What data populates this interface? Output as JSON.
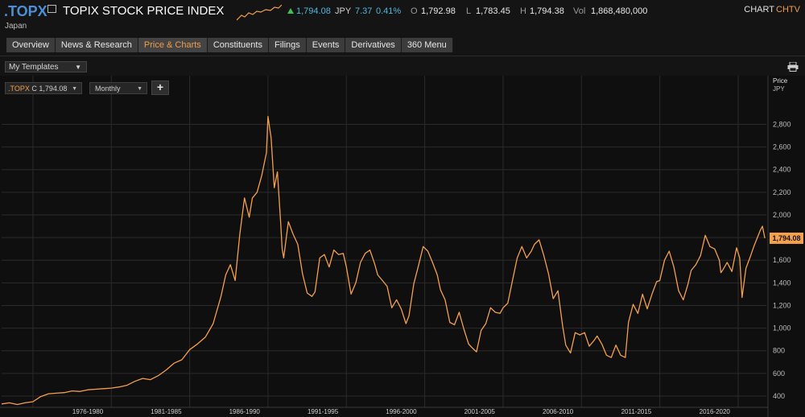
{
  "header": {
    "ric": ".TOPX",
    "name": "TOPIX STOCK PRICE INDEX",
    "country": "Japan",
    "last": "1,794.08",
    "currency": "JPY",
    "change": "7.37",
    "change_pct": "0.41%",
    "open_label": "O",
    "open": "1,792.98",
    "low_label": "L",
    "low": "1,783.45",
    "high_label": "H",
    "high": "1,794.38",
    "vol_label": "Vol",
    "vol": "1,868,480,000",
    "chart_label": "CHART",
    "chart_code": "CHTV",
    "colors": {
      "ric": "#4a90d9",
      "up": "#3ec05a",
      "change": "#4fb8e0",
      "accent": "#f39c4a"
    }
  },
  "tabs": [
    {
      "label": "Overview"
    },
    {
      "label": "News & Research"
    },
    {
      "label": "Price & Charts",
      "active": true
    },
    {
      "label": "Constituents"
    },
    {
      "label": "Filings"
    },
    {
      "label": "Events"
    },
    {
      "label": "Derivatives"
    },
    {
      "label": "360 Menu"
    }
  ],
  "toolbar": {
    "templates": "My Templates",
    "ric_prefix": ".TOPX",
    "ric_close": "C 1,794.08",
    "frequency": "Monthly",
    "add_label": "+",
    "print_icon": "printer-icon"
  },
  "chart_data": {
    "type": "line",
    "frequency": "Monthly",
    "y_title": "Price",
    "y_unit": "JPY",
    "ylim": [
      300,
      2960
    ],
    "y_ticks": [
      400,
      600,
      800,
      1000,
      1200,
      1400,
      1600,
      1800,
      2000,
      2200,
      2400,
      2600,
      2800
    ],
    "y_tick_labels": [
      "400",
      "600",
      "800",
      "1,000",
      "1,200",
      "1,400",
      "1,600",
      "1,800",
      "2,000",
      "2,200",
      "2,400",
      "2,600",
      "2,800"
    ],
    "x_period_labels": [
      "1976-1980",
      "1981-1985",
      "1986-1990",
      "1991-1995",
      "1996-2000",
      "2001-2005",
      "2006-2010",
      "2011-2015",
      "2016-2020"
    ],
    "xlim": [
      1973.0,
      2021.8
    ],
    "grid": true,
    "last_value": 1794.08,
    "last_value_label": "1,794.08",
    "line_color": "#f5a04a",
    "series": [
      {
        "points": [
          [
            1973.0,
            330
          ],
          [
            1973.5,
            340
          ],
          [
            1974.0,
            325
          ],
          [
            1974.5,
            340
          ],
          [
            1975.0,
            350
          ],
          [
            1975.5,
            395
          ],
          [
            1976.0,
            420
          ],
          [
            1976.5,
            425
          ],
          [
            1977.0,
            430
          ],
          [
            1977.5,
            445
          ],
          [
            1978.0,
            440
          ],
          [
            1978.5,
            455
          ],
          [
            1979.0,
            460
          ],
          [
            1979.5,
            465
          ],
          [
            1980.0,
            470
          ],
          [
            1980.5,
            480
          ],
          [
            1981.0,
            495
          ],
          [
            1981.5,
            530
          ],
          [
            1982.0,
            555
          ],
          [
            1982.5,
            545
          ],
          [
            1983.0,
            580
          ],
          [
            1983.5,
            630
          ],
          [
            1984.0,
            690
          ],
          [
            1984.5,
            720
          ],
          [
            1985.0,
            810
          ],
          [
            1985.5,
            860
          ],
          [
            1986.0,
            920
          ],
          [
            1986.5,
            1040
          ],
          [
            1987.0,
            1280
          ],
          [
            1987.3,
            1470
          ],
          [
            1987.6,
            1560
          ],
          [
            1987.9,
            1420
          ],
          [
            1988.2,
            1830
          ],
          [
            1988.5,
            2150
          ],
          [
            1988.8,
            1980
          ],
          [
            1989.0,
            2150
          ],
          [
            1989.3,
            2200
          ],
          [
            1989.6,
            2350
          ],
          [
            1989.9,
            2550
          ],
          [
            1990.0,
            2870
          ],
          [
            1990.2,
            2680
          ],
          [
            1990.4,
            2240
          ],
          [
            1990.6,
            2380
          ],
          [
            1990.8,
            1950
          ],
          [
            1990.9,
            1700
          ],
          [
            1991.0,
            1620
          ],
          [
            1991.3,
            1940
          ],
          [
            1991.6,
            1830
          ],
          [
            1991.9,
            1740
          ],
          [
            1992.2,
            1480
          ],
          [
            1992.5,
            1310
          ],
          [
            1992.8,
            1280
          ],
          [
            1993.0,
            1320
          ],
          [
            1993.3,
            1620
          ],
          [
            1993.6,
            1650
          ],
          [
            1993.9,
            1540
          ],
          [
            1994.2,
            1690
          ],
          [
            1994.5,
            1650
          ],
          [
            1994.8,
            1660
          ],
          [
            1995.0,
            1540
          ],
          [
            1995.3,
            1300
          ],
          [
            1995.6,
            1400
          ],
          [
            1995.9,
            1580
          ],
          [
            1996.2,
            1660
          ],
          [
            1996.5,
            1690
          ],
          [
            1996.8,
            1570
          ],
          [
            1997.0,
            1470
          ],
          [
            1997.3,
            1420
          ],
          [
            1997.6,
            1370
          ],
          [
            1997.9,
            1180
          ],
          [
            1998.2,
            1250
          ],
          [
            1998.5,
            1170
          ],
          [
            1998.8,
            1040
          ],
          [
            1999.0,
            1110
          ],
          [
            1999.3,
            1390
          ],
          [
            1999.6,
            1550
          ],
          [
            1999.9,
            1720
          ],
          [
            2000.2,
            1680
          ],
          [
            2000.5,
            1580
          ],
          [
            2000.8,
            1470
          ],
          [
            2001.0,
            1340
          ],
          [
            2001.3,
            1250
          ],
          [
            2001.6,
            1050
          ],
          [
            2001.9,
            1030
          ],
          [
            2002.2,
            1140
          ],
          [
            2002.5,
            990
          ],
          [
            2002.8,
            860
          ],
          [
            2003.0,
            830
          ],
          [
            2003.3,
            790
          ],
          [
            2003.6,
            980
          ],
          [
            2003.9,
            1040
          ],
          [
            2004.2,
            1180
          ],
          [
            2004.5,
            1140
          ],
          [
            2004.8,
            1130
          ],
          [
            2005.0,
            1180
          ],
          [
            2005.3,
            1220
          ],
          [
            2005.6,
            1420
          ],
          [
            2005.9,
            1620
          ],
          [
            2006.2,
            1720
          ],
          [
            2006.5,
            1620
          ],
          [
            2006.8,
            1680
          ],
          [
            2007.0,
            1740
          ],
          [
            2007.3,
            1780
          ],
          [
            2007.6,
            1640
          ],
          [
            2007.9,
            1480
          ],
          [
            2008.2,
            1260
          ],
          [
            2008.5,
            1330
          ],
          [
            2008.8,
            1020
          ],
          [
            2009.0,
            850
          ],
          [
            2009.3,
            780
          ],
          [
            2009.6,
            960
          ],
          [
            2009.9,
            940
          ],
          [
            2010.2,
            960
          ],
          [
            2010.5,
            840
          ],
          [
            2010.8,
            890
          ],
          [
            2011.0,
            930
          ],
          [
            2011.3,
            860
          ],
          [
            2011.6,
            760
          ],
          [
            2011.9,
            740
          ],
          [
            2012.2,
            850
          ],
          [
            2012.5,
            760
          ],
          [
            2012.8,
            740
          ],
          [
            2013.0,
            1050
          ],
          [
            2013.3,
            1210
          ],
          [
            2013.6,
            1130
          ],
          [
            2013.9,
            1300
          ],
          [
            2014.2,
            1170
          ],
          [
            2014.5,
            1300
          ],
          [
            2014.8,
            1410
          ],
          [
            2015.0,
            1420
          ],
          [
            2015.3,
            1600
          ],
          [
            2015.6,
            1680
          ],
          [
            2015.9,
            1540
          ],
          [
            2016.2,
            1330
          ],
          [
            2016.5,
            1250
          ],
          [
            2016.8,
            1390
          ],
          [
            2017.0,
            1510
          ],
          [
            2017.3,
            1560
          ],
          [
            2017.6,
            1640
          ],
          [
            2017.9,
            1820
          ],
          [
            2018.2,
            1720
          ],
          [
            2018.5,
            1700
          ],
          [
            2018.8,
            1600
          ],
          [
            2018.9,
            1490
          ],
          [
            2019.0,
            1510
          ],
          [
            2019.3,
            1580
          ],
          [
            2019.6,
            1500
          ],
          [
            2019.9,
            1710
          ],
          [
            2020.1,
            1620
          ],
          [
            2020.25,
            1270
          ],
          [
            2020.5,
            1530
          ],
          [
            2020.8,
            1640
          ],
          [
            2021.0,
            1720
          ],
          [
            2021.2,
            1790
          ],
          [
            2021.4,
            1860
          ],
          [
            2021.55,
            1900
          ],
          [
            2021.7,
            1794.08
          ]
        ]
      }
    ]
  }
}
